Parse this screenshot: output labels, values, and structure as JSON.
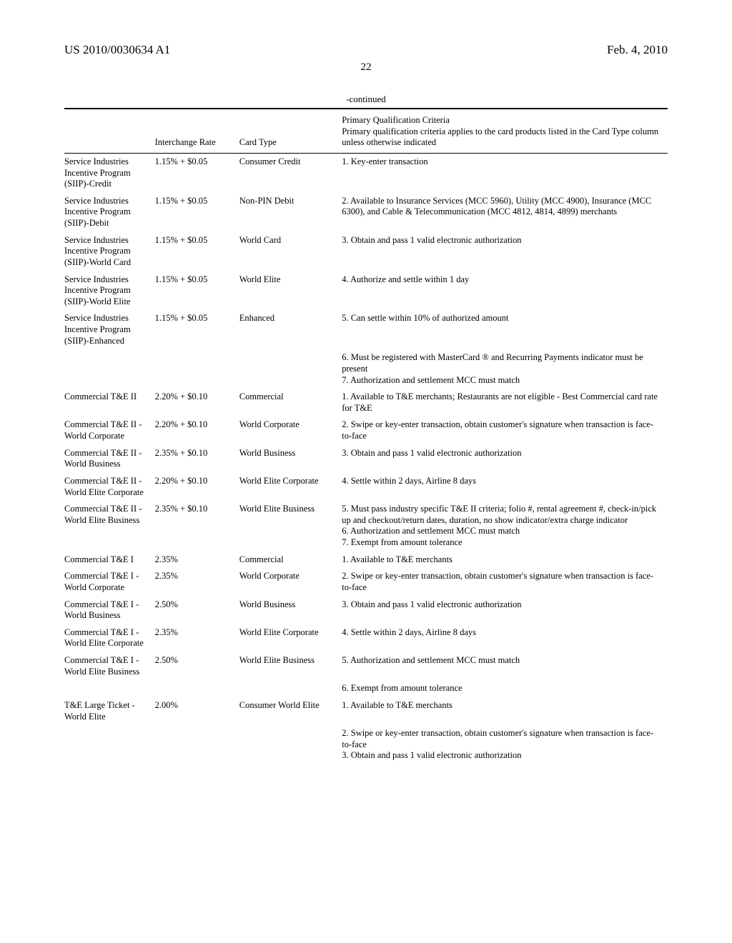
{
  "header": {
    "pub_number": "US 2010/0030634 A1",
    "pub_date": "Feb. 4, 2010"
  },
  "page_number": "22",
  "continued_label": "-continued",
  "table": {
    "headers": {
      "rate": "Interchange Rate",
      "card_type": "Card Type",
      "criteria": "Primary Qualification Criteria\nPrimary qualification criteria applies to the card products listed in the Card Type column unless otherwise indicated"
    },
    "rows": [
      {
        "name": "Service Industries Incentive Program (SIIP)-Credit",
        "rate": "1.15% + $0.05",
        "card_type": "Consumer Credit",
        "criteria": "1. Key-enter transaction"
      },
      {
        "name": "Service Industries Incentive Program (SIIP)-Debit",
        "rate": "1.15% + $0.05",
        "card_type": "Non-PIN Debit",
        "criteria": "2. Available to Insurance Services (MCC 5960), Utility (MCC 4900), Insurance (MCC 6300), and Cable & Telecommunication (MCC 4812, 4814, 4899) merchants"
      },
      {
        "name": "Service Industries Incentive Program (SIIP)-World Card",
        "rate": "1.15% + $0.05",
        "card_type": "World Card",
        "criteria": "3. Obtain and pass 1 valid electronic authorization"
      },
      {
        "name": "Service Industries Incentive Program (SIIP)-World Elite",
        "rate": "1.15% + $0.05",
        "card_type": "World Elite",
        "criteria": "4. Authorize and settle within 1 day"
      },
      {
        "name": "Service Industries Incentive Program (SIIP)-Enhanced",
        "rate": "1.15% + $0.05",
        "card_type": "Enhanced",
        "criteria": "5. Can settle within 10% of authorized amount"
      },
      {
        "name": "",
        "rate": "",
        "card_type": "",
        "criteria": "6. Must be registered with MasterCard ® and Recurring Payments indicator must be present\n7. Authorization and settlement MCC must match"
      },
      {
        "name": "Commercial T&E II",
        "rate": "2.20% + $0.10",
        "card_type": "Commercial",
        "criteria": "1. Available to T&E merchants; Restaurants are not eligible - Best Commercial card rate for T&E"
      },
      {
        "name": "Commercial T&E II - World Corporate",
        "rate": "2.20% + $0.10",
        "card_type": "World Corporate",
        "criteria": "2. Swipe or key-enter transaction, obtain customer's signature when transaction is face-to-face"
      },
      {
        "name": "Commercial T&E II - World Business",
        "rate": "2.35% + $0.10",
        "card_type": "World Business",
        "criteria": "3. Obtain and pass 1 valid electronic authorization"
      },
      {
        "name": "Commercial T&E II - World Elite Corporate",
        "rate": "2.20% + $0.10",
        "card_type": "World Elite Corporate",
        "criteria": "4. Settle within 2 days, Airline 8 days"
      },
      {
        "name": "Commercial T&E II - World Elite Business",
        "rate": "2.35% + $0.10",
        "card_type": "World Elite Business",
        "criteria": "5. Must pass industry specific T&E II criteria; folio #, rental agreement #, check-in/pick up and checkout/return dates, duration, no show indicator/extra charge indicator\n6. Authorization and settlement MCC must match\n7. Exempt from amount tolerance"
      },
      {
        "name": "Commercial T&E I",
        "rate": "2.35%",
        "card_type": "Commercial",
        "criteria": "1. Available to T&E merchants"
      },
      {
        "name": "Commercial T&E I - World Corporate",
        "rate": "2.35%",
        "card_type": "World Corporate",
        "criteria": "2. Swipe or key-enter transaction, obtain customer's signature when transaction is face-to-face"
      },
      {
        "name": "Commercial T&E I - World Business",
        "rate": "2.50%",
        "card_type": "World Business",
        "criteria": "3. Obtain and pass 1 valid electronic authorization"
      },
      {
        "name": "Commercial T&E I - World Elite Corporate",
        "rate": "2.35%",
        "card_type": "World Elite Corporate",
        "criteria": "4. Settle within 2 days, Airline 8 days"
      },
      {
        "name": "Commercial T&E I - World Elite Business",
        "rate": "2.50%",
        "card_type": "World Elite Business",
        "criteria": "5. Authorization and settlement MCC must match"
      },
      {
        "name": "",
        "rate": "",
        "card_type": "",
        "criteria": "6. Exempt from amount tolerance"
      },
      {
        "name": "T&E Large Ticket - World Elite",
        "rate": "2.00%",
        "card_type": "Consumer World Elite",
        "criteria": "1. Available to T&E merchants"
      },
      {
        "name": "",
        "rate": "",
        "card_type": "",
        "criteria": "2. Swipe or key-enter transaction, obtain customer's signature when transaction is face-to-face\n3. Obtain and pass 1 valid electronic authorization"
      }
    ]
  }
}
